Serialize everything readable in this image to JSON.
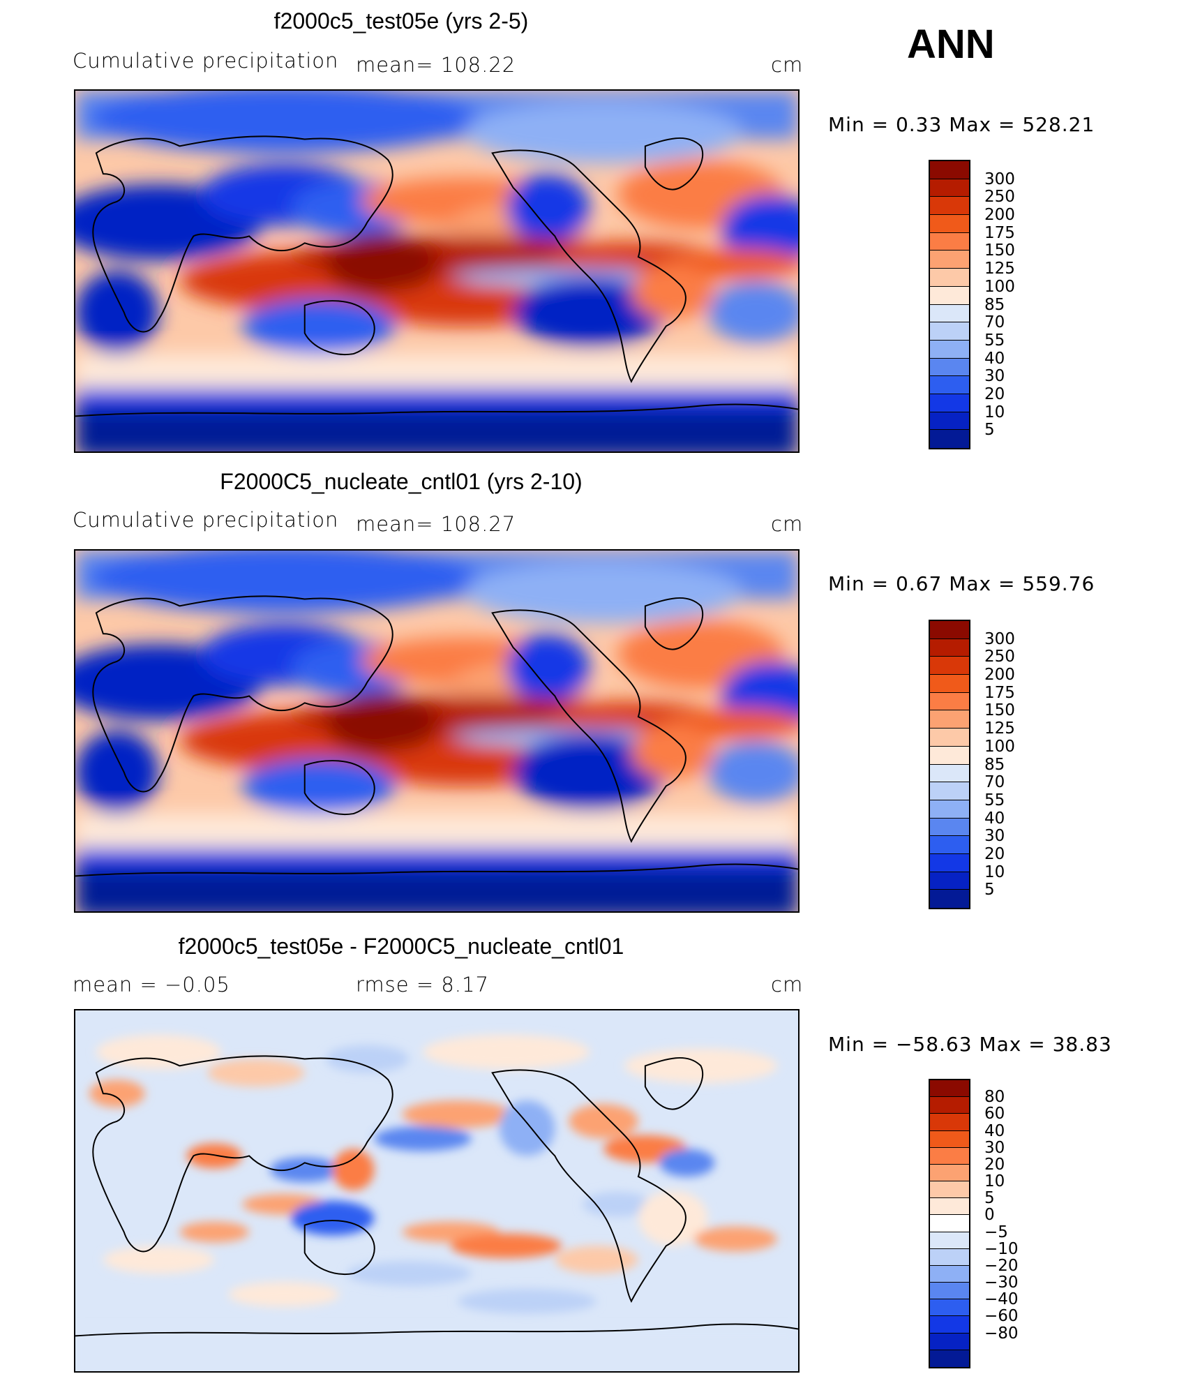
{
  "season_label": "ANN",
  "palette_main": [
    "#8b0a00",
    "#b51c00",
    "#d93808",
    "#f05a1a",
    "#fb7d45",
    "#fca272",
    "#fdc9a8",
    "#fee9d9",
    "#dbe7f9",
    "#bcd1f7",
    "#8eb0f5",
    "#5a86f0",
    "#2d5ef0",
    "#1338e6",
    "#0622c4",
    "#031a96"
  ],
  "palette_diff": [
    "#8b0a00",
    "#b51c00",
    "#d93808",
    "#f05a1a",
    "#fb7d45",
    "#fca272",
    "#fdc9a8",
    "#fee9d9",
    "#ffffff",
    "#dbe7f9",
    "#bcd1f7",
    "#8eb0f5",
    "#5a86f0",
    "#2d5ef0",
    "#1338e6",
    "#0622c4",
    "#031a96"
  ],
  "panels": [
    {
      "title": "f2000c5_test05e (yrs 2-5)",
      "left_label": "Cumulative  precipitation",
      "mid_label": "mean=  108.22",
      "unit": "cm",
      "minmax": "Min  =      0.33  Max  =  528.21",
      "colorbar_ticks": [
        "300",
        "250",
        "200",
        "175",
        "150",
        "125",
        "100",
        "85",
        "70",
        "55",
        "40",
        "30",
        "20",
        "10",
        "5"
      ]
    },
    {
      "title": "F2000C5_nucleate_cntl01 (yrs 2-10)",
      "left_label": "Cumulative  precipitation",
      "mid_label": "mean=  108.27",
      "unit": "cm",
      "minmax": "Min  =      0.67  Max  =  559.76",
      "colorbar_ticks": [
        "300",
        "250",
        "200",
        "175",
        "150",
        "125",
        "100",
        "85",
        "70",
        "55",
        "40",
        "30",
        "20",
        "10",
        "5"
      ]
    },
    {
      "title": "f2000c5_test05e - F2000C5_nucleate_cntl01",
      "left_label": "mean  =      −0.05",
      "mid_label": "rmse  =       8.17",
      "unit": "cm",
      "minmax": "Min  =  −58.63  Max  =      38.83",
      "colorbar_ticks": [
        "80",
        "60",
        "40",
        "30",
        "20",
        "10",
        "5",
        "0",
        "−5",
        "−10",
        "−20",
        "−30",
        "−40",
        "−60",
        "−80"
      ]
    }
  ]
}
